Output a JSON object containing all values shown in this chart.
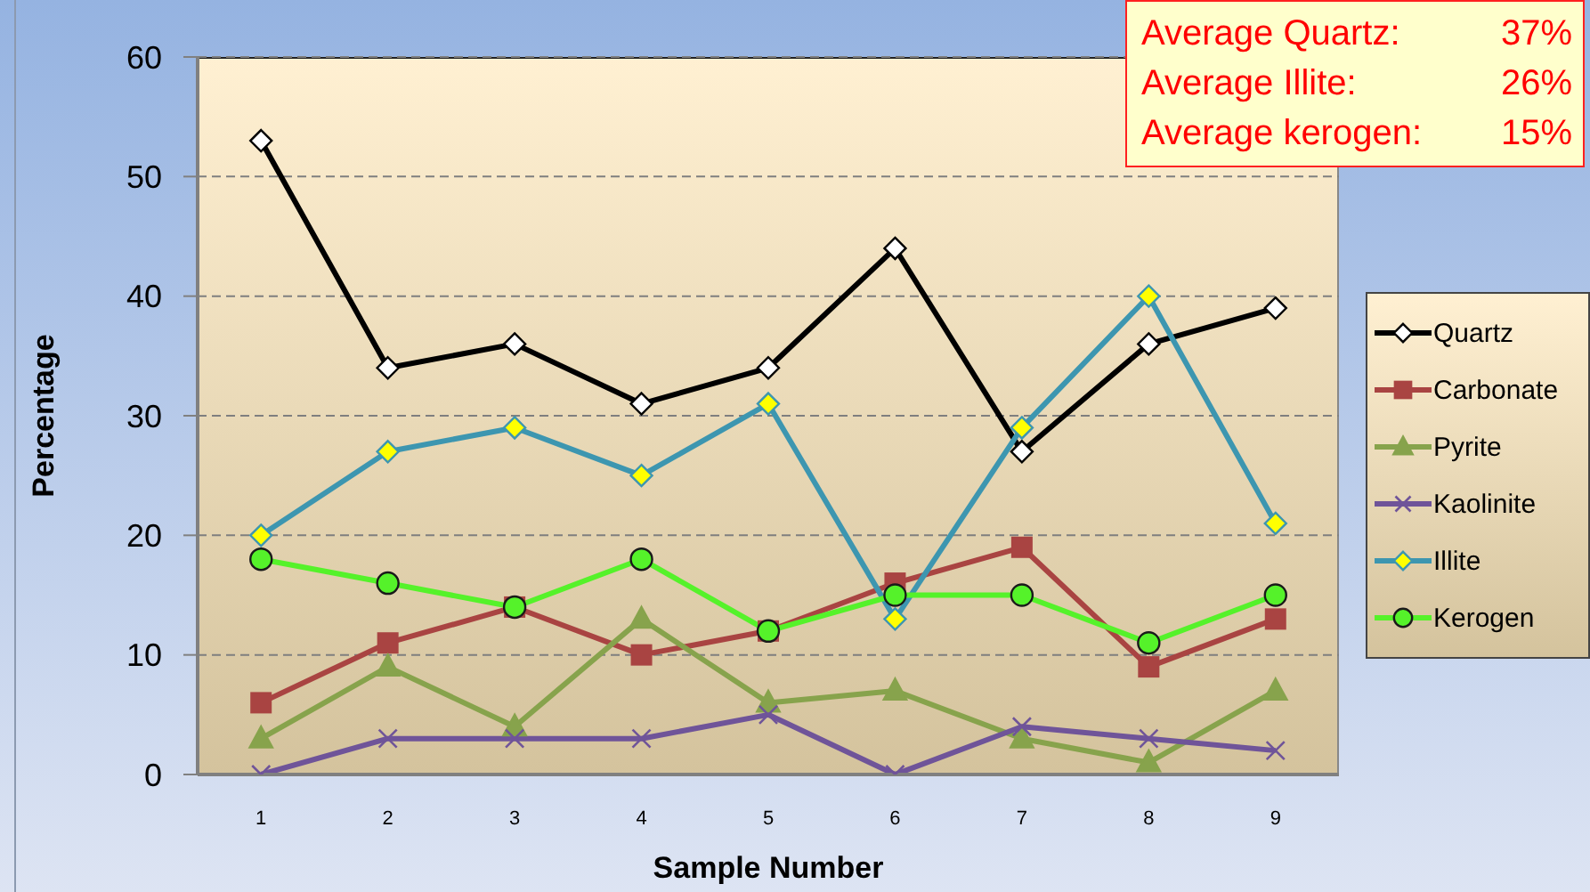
{
  "chart_data": {
    "type": "line",
    "xlabel": "Sample Number",
    "ylabel": "Percentage",
    "categories": [
      "1",
      "2",
      "3",
      "4",
      "5",
      "6",
      "7",
      "8",
      "9"
    ],
    "series": [
      {
        "name": "Quartz",
        "color": "#000000",
        "marker": "diamond",
        "colors": [
          "#ffffff",
          "#ffffff",
          "#ffffff",
          "#ffffff",
          "#ffffff",
          "#ffffff",
          "#ffffff",
          "#ffffff",
          "#ffffff"
        ],
        "values": [
          53,
          34,
          36,
          31,
          34,
          44,
          27,
          36,
          39
        ]
      },
      {
        "name": "Carbonate",
        "color": "#a94442",
        "marker": "square",
        "values": [
          6,
          11,
          14,
          10,
          12,
          16,
          19,
          9,
          13
        ]
      },
      {
        "name": "Pyrite",
        "color": "#87a34c",
        "marker": "triangle",
        "values": [
          3,
          9,
          4,
          13,
          6,
          7,
          3,
          1,
          7
        ]
      },
      {
        "name": "Kaolinite",
        "color": "#6f5499",
        "marker": "cross",
        "values": [
          0,
          3,
          3,
          3,
          5,
          0,
          4,
          3,
          2
        ]
      },
      {
        "name": "Illite",
        "color": "#3d96b0",
        "marker": "diamond",
        "colors": [
          "#ffff00",
          "#ffff00",
          "#ffff00",
          "#ffff00",
          "#ffff00",
          "#ffff00",
          "#ffff00",
          "#ffff00",
          "#ffff00"
        ],
        "values": [
          20,
          27,
          29,
          25,
          31,
          13,
          29,
          40,
          21
        ]
      },
      {
        "name": "Kerogen",
        "color": "#55f22a",
        "marker": "circle",
        "values": [
          18,
          16,
          14,
          18,
          12,
          15,
          15,
          11,
          15
        ]
      }
    ],
    "ylim": [
      0,
      60
    ],
    "yticks": [
      0,
      10,
      20,
      30,
      40,
      50,
      60
    ],
    "grid": "y",
    "legend": "right",
    "line_style": "solid",
    "annotations": [
      "Average Quartz: 37%",
      "Average Illite: 26%",
      "Average kerogen: 15%"
    ]
  }
}
